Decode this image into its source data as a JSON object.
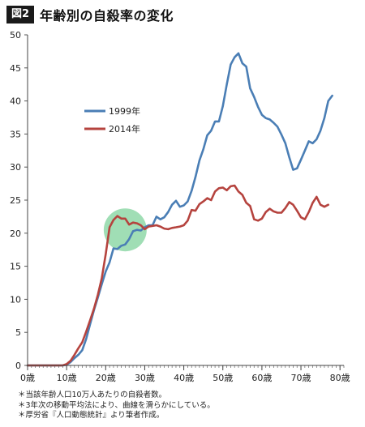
{
  "header": {
    "badge": "図2",
    "title": "年齢別の自殺率の変化"
  },
  "notes": [
    "＊当該年齢人口10万人あたりの自殺者数。",
    "＊3年次の移動平均法により、曲線を滑らかにしている。",
    "＊厚労省『人口動態統計』より筆者作成。"
  ],
  "colors": {
    "series1999": "#4a7eb5",
    "series2014": "#b5433e",
    "highlight": "#8fd8a8"
  },
  "chart_data": {
    "type": "line",
    "xlim": [
      0,
      81
    ],
    "ylim": [
      0,
      50
    ],
    "yticks": [
      0,
      5,
      10,
      15,
      20,
      25,
      30,
      35,
      40,
      45,
      50
    ],
    "xticks": [
      {
        "value": 0,
        "label": "0歳"
      },
      {
        "value": 10,
        "label": "10歳"
      },
      {
        "value": 20,
        "label": "20歳"
      },
      {
        "value": 30,
        "label": "30歳"
      },
      {
        "value": 40,
        "label": "40歳"
      },
      {
        "value": 50,
        "label": "50歳"
      },
      {
        "value": 60,
        "label": "60歳"
      },
      {
        "value": 70,
        "label": "70歳"
      },
      {
        "value": 80,
        "label": "80歳"
      }
    ],
    "legend": {
      "placement": "upper-left"
    },
    "highlight": {
      "shape": "circle",
      "center_x": 25,
      "center_y": 20.5,
      "radius_x": 5.5
    },
    "series": [
      {
        "name": "1999年",
        "color": "#4a7eb5",
        "x": [
          0,
          1,
          2,
          3,
          4,
          5,
          6,
          7,
          8,
          9,
          10,
          11,
          12,
          13,
          14,
          15,
          16,
          17,
          18,
          19,
          20,
          21,
          22,
          23,
          24,
          25,
          26,
          27,
          28,
          29,
          30,
          31,
          32,
          33,
          34,
          35,
          36,
          37,
          38,
          39,
          40,
          41,
          42,
          43,
          44,
          45,
          46,
          47,
          48,
          49,
          50,
          51,
          52,
          53,
          54,
          55,
          56,
          57,
          58,
          59,
          60,
          61,
          62,
          63,
          64,
          65,
          66,
          67,
          68,
          69,
          70,
          71,
          72,
          73,
          74,
          75,
          76,
          77,
          78,
          79,
          80,
          81
        ],
        "y": [
          0,
          0,
          0,
          0,
          0,
          0,
          0,
          0,
          0,
          0,
          0.1,
          0.5,
          1.1,
          1.6,
          2.3,
          4.0,
          6.2,
          8.4,
          10.3,
          12.3,
          14.2,
          15.6,
          17.7,
          17.6,
          18.1,
          18.3,
          19.1,
          20.3,
          20.5,
          20.4,
          20.9,
          21.2,
          21.2,
          22.5,
          22.1,
          22.4,
          23.2,
          24.3,
          24.9,
          24.0,
          24.2,
          24.8,
          26.4,
          28.5,
          31.0,
          32.7,
          34.8,
          35.5,
          36.9,
          36.9,
          39.2,
          42.5,
          45.5,
          46.6,
          47.2,
          45.7,
          45.2,
          41.9,
          40.6,
          39.1,
          37.9,
          37.4,
          37.2,
          36.7,
          36.1,
          34.9,
          33.6,
          31.5,
          29.6,
          29.8,
          31.1,
          32.5,
          33.9,
          33.6,
          34.2,
          35.5,
          37.4,
          40.0,
          40.8,
          null,
          null,
          null
        ]
      },
      {
        "name": "2014年",
        "color": "#b5433e",
        "x": [
          0,
          1,
          2,
          3,
          4,
          5,
          6,
          7,
          8,
          9,
          10,
          11,
          12,
          13,
          14,
          15,
          16,
          17,
          18,
          19,
          20,
          21,
          22,
          23,
          24,
          25,
          26,
          27,
          28,
          29,
          30,
          31,
          32,
          33,
          34,
          35,
          36,
          37,
          38,
          39,
          40,
          41,
          42,
          43,
          44,
          45,
          46,
          47,
          48,
          49,
          50,
          51,
          52,
          53,
          54,
          55,
          56,
          57,
          58,
          59,
          60,
          61,
          62,
          63,
          64,
          65,
          66,
          67,
          68,
          69,
          70,
          71,
          72,
          73,
          74,
          75,
          76,
          77,
          78,
          79,
          80,
          81
        ],
        "y": [
          0,
          0,
          0,
          0,
          0,
          0,
          0,
          0,
          0,
          0,
          0.2,
          0.7,
          1.6,
          2.6,
          3.5,
          5.1,
          6.8,
          8.6,
          10.7,
          13.2,
          16.8,
          20.9,
          22.0,
          22.6,
          22.2,
          22.2,
          21.3,
          21.6,
          21.5,
          21.2,
          20.6,
          21.0,
          21.1,
          21.2,
          21.0,
          20.7,
          20.6,
          20.8,
          20.9,
          21.0,
          21.2,
          21.9,
          23.5,
          23.4,
          24.4,
          24.8,
          25.3,
          25.0,
          26.3,
          26.8,
          26.9,
          26.5,
          27.1,
          27.2,
          26.3,
          25.8,
          24.6,
          24.1,
          22.1,
          21.9,
          22.2,
          23.2,
          23.7,
          23.3,
          23.1,
          23.1,
          23.8,
          24.7,
          24.3,
          23.4,
          22.4,
          22.1,
          23.2,
          24.6,
          25.5,
          24.3,
          24.0,
          24.3,
          null,
          null,
          null,
          null
        ]
      }
    ]
  }
}
